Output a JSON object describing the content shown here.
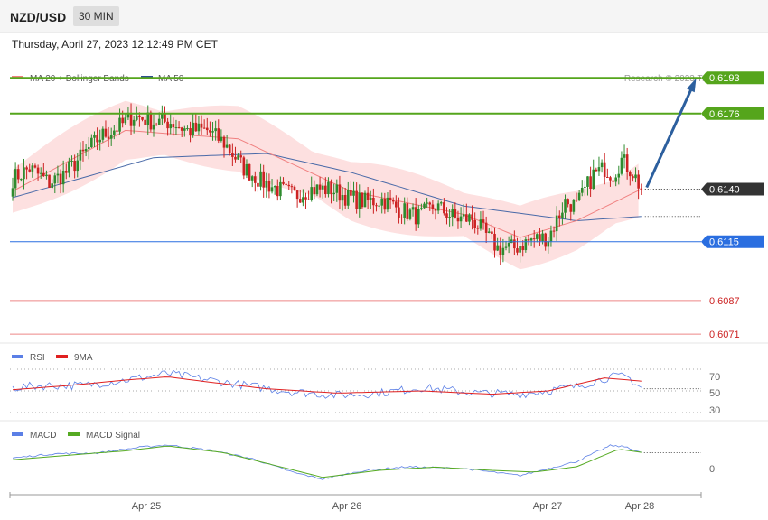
{
  "header": {
    "symbol": "NZD/USD",
    "timeframe": "30 MIN",
    "datetime": "Thursday, April 27, 2023 12:12:49 PM CET"
  },
  "legend": {
    "ma20": "MA 20 + Bollinger Bands",
    "ma50": "MA 50",
    "credit": "Research © 2023 Trading Central"
  },
  "colors": {
    "bull": "#2e8b2e",
    "bear": "#cc2222",
    "band": "#fde0e0",
    "ma20": "#f08080",
    "ma50": "#4a6aa8",
    "resistance": "#55a51c",
    "support": "#2a6ee0",
    "lowlevel": "#ee8888",
    "arrow": "#2c5f9e",
    "price": "#333333",
    "rsi": "#5b7fe6",
    "rsi_ma": "#e02020",
    "macd": "#5b7fe6",
    "macd_signal": "#55aa22"
  },
  "chart_data": [
    {
      "type": "candlestick",
      "title": "NZD/USD 30 MIN",
      "ylim": [
        0.6056,
        0.6206
      ],
      "x_ticks": [
        "Apr 25",
        "Apr 26",
        "Apr 27",
        "Apr 28"
      ],
      "levels": [
        {
          "value": 0.6193,
          "label": "0.6193",
          "kind": "resistance"
        },
        {
          "value": 0.6176,
          "label": "0.6176",
          "kind": "resistance"
        },
        {
          "value": 0.614,
          "label": "0.6140",
          "kind": "price"
        },
        {
          "value": 0.6115,
          "label": "0.6115",
          "kind": "support"
        },
        {
          "value": 0.6087,
          "label": "0.6087",
          "kind": "low"
        },
        {
          "value": 0.6071,
          "label": "0.6071",
          "kind": "low"
        }
      ],
      "anchors": [
        [
          0,
          0.6145
        ],
        [
          6,
          0.615
        ],
        [
          13,
          0.6143
        ],
        [
          19,
          0.6148
        ],
        [
          24,
          0.6155
        ],
        [
          31,
          0.6165
        ],
        [
          38,
          0.617
        ],
        [
          43,
          0.6175
        ],
        [
          50,
          0.6172
        ],
        [
          56,
          0.6172
        ],
        [
          62,
          0.6168
        ],
        [
          69,
          0.6168
        ],
        [
          75,
          0.6162
        ],
        [
          82,
          0.615
        ],
        [
          88,
          0.6144
        ],
        [
          94,
          0.614
        ],
        [
          100,
          0.6137
        ],
        [
          106,
          0.614
        ],
        [
          113,
          0.614
        ],
        [
          119,
          0.6136
        ],
        [
          125,
          0.6134
        ],
        [
          131,
          0.6135
        ],
        [
          138,
          0.613
        ],
        [
          144,
          0.6127
        ],
        [
          150,
          0.6132
        ],
        [
          157,
          0.6126
        ],
        [
          163,
          0.6126
        ],
        [
          168,
          0.6118
        ],
        [
          172,
          0.6112
        ],
        [
          178,
          0.6112
        ],
        [
          184,
          0.6116
        ],
        [
          190,
          0.6117
        ],
        [
          196,
          0.6134
        ],
        [
          200,
          0.6132
        ],
        [
          206,
          0.6147
        ],
        [
          210,
          0.615
        ],
        [
          213,
          0.6147
        ],
        [
          216,
          0.6154
        ],
        [
          220,
          0.6148
        ],
        [
          223,
          0.614
        ]
      ],
      "candle_count": 224,
      "ma20": [
        [
          0,
          0.6139
        ],
        [
          40,
          0.6168
        ],
        [
          80,
          0.6164
        ],
        [
          120,
          0.6139
        ],
        [
          160,
          0.6128
        ],
        [
          180,
          0.6117
        ],
        [
          200,
          0.6125
        ],
        [
          223,
          0.614
        ]
      ],
      "ma50": [
        [
          0,
          0.6136
        ],
        [
          50,
          0.6155
        ],
        [
          90,
          0.6157
        ],
        [
          120,
          0.6148
        ],
        [
          160,
          0.6132
        ],
        [
          200,
          0.6125
        ],
        [
          223,
          0.6127
        ]
      ],
      "band_width": 0.0012
    },
    {
      "type": "line",
      "title": "RSI",
      "series": [
        {
          "name": "RSI"
        },
        {
          "name": "9MA"
        }
      ],
      "ylim": [
        25,
        75
      ],
      "guides": [
        70,
        50,
        30
      ],
      "y_tick_labels": [
        "70",
        "50",
        "30"
      ],
      "rsi": [
        [
          0,
          53
        ],
        [
          12,
          55
        ],
        [
          25,
          55
        ],
        [
          40,
          60
        ],
        [
          55,
          66
        ],
        [
          70,
          60
        ],
        [
          80,
          56
        ],
        [
          100,
          49
        ],
        [
          115,
          46
        ],
        [
          130,
          48
        ],
        [
          145,
          53
        ],
        [
          165,
          48
        ],
        [
          180,
          47
        ],
        [
          200,
          54
        ],
        [
          212,
          63
        ],
        [
          218,
          63
        ],
        [
          223,
          53
        ]
      ],
      "rsi_ma": [
        [
          0,
          51
        ],
        [
          20,
          55
        ],
        [
          40,
          60
        ],
        [
          55,
          63
        ],
        [
          70,
          58
        ],
        [
          90,
          52
        ],
        [
          115,
          48
        ],
        [
          145,
          50
        ],
        [
          170,
          47
        ],
        [
          190,
          50
        ],
        [
          210,
          62
        ],
        [
          223,
          59
        ]
      ],
      "last_value": 52
    },
    {
      "type": "line",
      "title": "MACD",
      "series": [
        {
          "name": "MACD"
        },
        {
          "name": "MACD Signal"
        }
      ],
      "ylim": [
        -1,
        1
      ],
      "guides": [
        0
      ],
      "y_tick_labels": [
        "0"
      ],
      "macd": [
        [
          0,
          0.3
        ],
        [
          15,
          0.42
        ],
        [
          30,
          0.44
        ],
        [
          45,
          0.6
        ],
        [
          55,
          0.67
        ],
        [
          70,
          0.52
        ],
        [
          85,
          0.28
        ],
        [
          100,
          -0.12
        ],
        [
          110,
          -0.3
        ],
        [
          125,
          -0.05
        ],
        [
          140,
          0.05
        ],
        [
          160,
          0.0
        ],
        [
          180,
          -0.2
        ],
        [
          200,
          0.2
        ],
        [
          212,
          0.65
        ],
        [
          218,
          0.61
        ],
        [
          223,
          0.44
        ]
      ],
      "signal": [
        [
          0,
          0.25
        ],
        [
          20,
          0.38
        ],
        [
          40,
          0.5
        ],
        [
          55,
          0.64
        ],
        [
          75,
          0.45
        ],
        [
          95,
          0.05
        ],
        [
          110,
          -0.25
        ],
        [
          130,
          -0.05
        ],
        [
          150,
          0.04
        ],
        [
          170,
          -0.05
        ],
        [
          185,
          -0.1
        ],
        [
          200,
          0.05
        ],
        [
          215,
          0.55
        ],
        [
          223,
          0.46
        ]
      ],
      "last_value": 0.45
    }
  ]
}
